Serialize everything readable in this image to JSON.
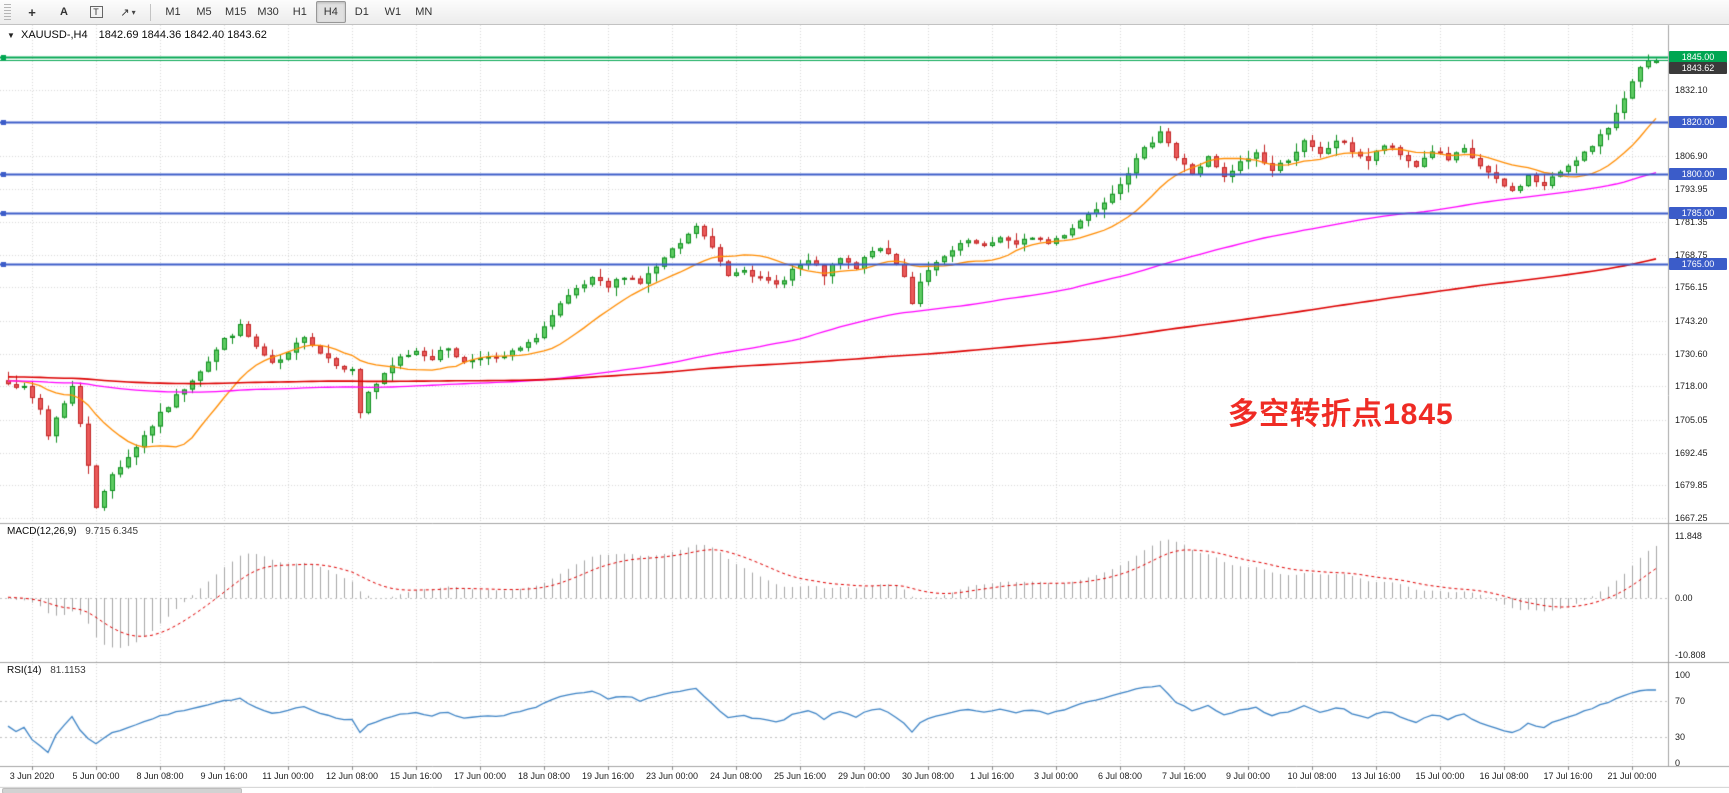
{
  "toolbar": {
    "tools": {
      "crosshair": "+",
      "text": "A",
      "label": "T",
      "arrows": "↗",
      "caret": "▾"
    },
    "timeframes": [
      {
        "label": "M1",
        "active": false
      },
      {
        "label": "M5",
        "active": false
      },
      {
        "label": "M15",
        "active": false
      },
      {
        "label": "M30",
        "active": false
      },
      {
        "label": "H1",
        "active": false
      },
      {
        "label": "H4",
        "active": true
      },
      {
        "label": "D1",
        "active": false
      },
      {
        "label": "W1",
        "active": false
      },
      {
        "label": "MN",
        "active": false
      }
    ]
  },
  "chart_header": {
    "collapse_arrow": "▼",
    "symbol": "XAUUSD-,H4",
    "ohlc": "1842.69 1844.36 1842.40 1843.62"
  },
  "annotation": {
    "text": "多空转折点1845",
    "color": "#ef2b24"
  },
  "indicators": {
    "macd": {
      "label": "MACD(12,26,9)",
      "values": "9.715 6.345",
      "axis_labels": [
        "11.848",
        "0.00",
        "-10.808"
      ],
      "axis_values": [
        11.848,
        0,
        -10.808
      ]
    },
    "rsi": {
      "label": "RSI(14)",
      "value": "81.1153",
      "axis_labels": [
        "100",
        "70",
        "30",
        "0"
      ],
      "axis_values": [
        100,
        70,
        30,
        0
      ],
      "levels": [
        70,
        30
      ]
    }
  },
  "price_axis": {
    "labels": [
      "1832.10",
      "1806.90",
      "1793.95",
      "1781.35",
      "1768.75",
      "1756.15",
      "1743.20",
      "1730.60",
      "1718.00",
      "1705.05",
      "1692.45",
      "1679.85",
      "1667.25"
    ]
  },
  "time_axis": {
    "labels": [
      "3 Jun 2020",
      "5 Jun 00:00",
      "8 Jun 08:00",
      "9 Jun 16:00",
      "11 Jun 00:00",
      "12 Jun 08:00",
      "15 Jun 16:00",
      "17 Jun 00:00",
      "18 Jun 08:00",
      "19 Jun 16:00",
      "23 Jun 00:00",
      "24 Jun 08:00",
      "25 Jun 16:00",
      "29 Jun 00:00",
      "30 Jun 08:00",
      "1 Jul 16:00",
      "3 Jul 00:00",
      "6 Jul 08:00",
      "7 Jul 16:00",
      "9 Jul 00:00",
      "10 Jul 08:00",
      "13 Jul 16:00",
      "15 Jul 00:00",
      "16 Jul 08:00",
      "17 Jul 16:00",
      "21 Jul 00:00"
    ]
  },
  "chart_data": {
    "type": "candlestick",
    "symbol": "XAUUSD",
    "timeframe": "H4",
    "bars": 207,
    "visible_price_range": [
      1665.3,
      1857.3
    ],
    "last_ohlc": {
      "open": 1842.69,
      "high": 1844.36,
      "low": 1842.4,
      "close": 1843.62
    },
    "levels": {
      "green": [
        {
          "price": 1845.0,
          "tag": "1845.00"
        }
      ],
      "blue": [
        {
          "price": 1820.0,
          "tag": "1820.00"
        },
        {
          "price": 1800.0,
          "tag": "1800.00"
        },
        {
          "price": 1785.0,
          "tag": "1785.00"
        },
        {
          "price": 1765.0,
          "tag": "1765.00"
        }
      ],
      "current": {
        "price": 1843.62,
        "tag": "1843.62"
      }
    },
    "moving_averages": [
      {
        "period": 13,
        "color": "#ff8c00",
        "width": 1.3
      },
      {
        "period": 90,
        "color": "#ff00ff",
        "width": 1.3
      },
      {
        "period": 200,
        "color": "#dd0000",
        "width": 1.6
      }
    ],
    "macd": {
      "fast": 12,
      "slow": 26,
      "signal": 9,
      "last": 9.715,
      "last_signal": 6.345,
      "range": [
        -10.808,
        11.848
      ]
    },
    "rsi": {
      "period": 14,
      "last": 81.1153,
      "range": [
        0,
        100
      ]
    },
    "close_anchors": [
      [
        0,
        1720
      ],
      [
        2,
        1717
      ],
      [
        4,
        1709
      ],
      [
        5,
        1699
      ],
      [
        6,
        1706
      ],
      [
        8,
        1718
      ],
      [
        9,
        1703
      ],
      [
        10,
        1688
      ],
      [
        11,
        1672
      ],
      [
        12,
        1677
      ],
      [
        13,
        1684
      ],
      [
        15,
        1691
      ],
      [
        17,
        1699
      ],
      [
        19,
        1707
      ],
      [
        21,
        1714
      ],
      [
        23,
        1721
      ],
      [
        25,
        1728
      ],
      [
        27,
        1736
      ],
      [
        29,
        1741
      ],
      [
        31,
        1733
      ],
      [
        33,
        1726
      ],
      [
        35,
        1730
      ],
      [
        37,
        1738
      ],
      [
        39,
        1731
      ],
      [
        41,
        1727
      ],
      [
        43,
        1724
      ],
      [
        44,
        1708
      ],
      [
        45,
        1716
      ],
      [
        47,
        1722
      ],
      [
        49,
        1729
      ],
      [
        51,
        1732
      ],
      [
        53,
        1729
      ],
      [
        55,
        1733
      ],
      [
        57,
        1727
      ],
      [
        59,
        1730
      ],
      [
        61,
        1728
      ],
      [
        63,
        1731
      ],
      [
        65,
        1734
      ],
      [
        67,
        1741
      ],
      [
        69,
        1749
      ],
      [
        71,
        1755
      ],
      [
        73,
        1759
      ],
      [
        75,
        1756
      ],
      [
        77,
        1761
      ],
      [
        79,
        1758
      ],
      [
        81,
        1764
      ],
      [
        83,
        1770
      ],
      [
        85,
        1776
      ],
      [
        86,
        1780
      ],
      [
        88,
        1771
      ],
      [
        90,
        1761
      ],
      [
        92,
        1764
      ],
      [
        94,
        1759
      ],
      [
        96,
        1757
      ],
      [
        98,
        1763
      ],
      [
        100,
        1766
      ],
      [
        102,
        1761
      ],
      [
        104,
        1767
      ],
      [
        106,
        1763
      ],
      [
        108,
        1771
      ],
      [
        110,
        1769
      ],
      [
        112,
        1761
      ],
      [
        113,
        1750
      ],
      [
        114,
        1759
      ],
      [
        116,
        1765
      ],
      [
        118,
        1770
      ],
      [
        120,
        1774
      ],
      [
        122,
        1771
      ],
      [
        124,
        1776
      ],
      [
        126,
        1772
      ],
      [
        128,
        1776
      ],
      [
        130,
        1773
      ],
      [
        132,
        1777
      ],
      [
        134,
        1782
      ],
      [
        136,
        1787
      ],
      [
        138,
        1793
      ],
      [
        140,
        1801
      ],
      [
        142,
        1809
      ],
      [
        144,
        1817
      ],
      [
        145,
        1812
      ],
      [
        146,
        1806
      ],
      [
        148,
        1800
      ],
      [
        150,
        1806
      ],
      [
        152,
        1798
      ],
      [
        154,
        1804
      ],
      [
        156,
        1808
      ],
      [
        158,
        1801
      ],
      [
        160,
        1806
      ],
      [
        162,
        1812
      ],
      [
        164,
        1807
      ],
      [
        166,
        1813
      ],
      [
        168,
        1809
      ],
      [
        170,
        1805
      ],
      [
        172,
        1811
      ],
      [
        174,
        1807
      ],
      [
        176,
        1803
      ],
      [
        178,
        1809
      ],
      [
        180,
        1805
      ],
      [
        182,
        1809
      ],
      [
        184,
        1803
      ],
      [
        186,
        1797
      ],
      [
        188,
        1793
      ],
      [
        190,
        1799
      ],
      [
        192,
        1795
      ],
      [
        194,
        1801
      ],
      [
        196,
        1806
      ],
      [
        198,
        1810
      ],
      [
        200,
        1818
      ],
      [
        202,
        1830
      ],
      [
        204,
        1840
      ],
      [
        205,
        1843
      ],
      [
        206,
        1843.62
      ]
    ]
  },
  "colors": {
    "up": "#0f8f1f",
    "up_fill": "#5ecb62",
    "down": "#c22525",
    "down_fill": "#ea5a5a",
    "grid": "#d9d9d9",
    "separator": "#a3a3a3",
    "level_blue": "#3b5cc9",
    "level_green": "#00a651",
    "macd_hist": "#a6a6a6",
    "macd_signal": "#e00000",
    "rsi_line": "#3e84c6",
    "tag_current_bg": "#3a3a3a",
    "axis_text": "#1c1c1c"
  }
}
